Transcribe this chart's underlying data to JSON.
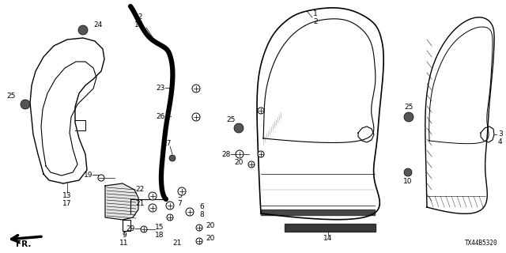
{
  "bg_color": "#ffffff",
  "watermark": "TX44B5320",
  "diagram_color": "#000000"
}
